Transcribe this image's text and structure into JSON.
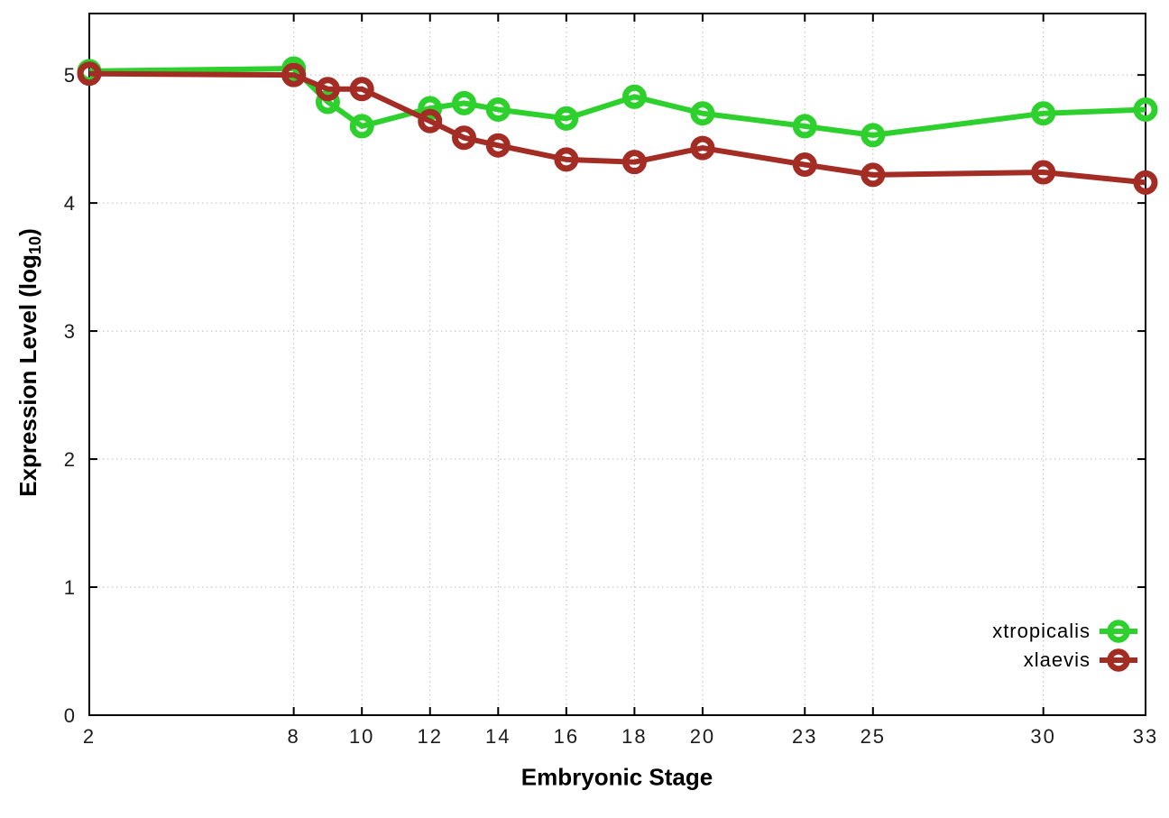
{
  "figure": {
    "xlabel": "Embryonic Stage",
    "ylabel_prefix": "Expression Level (log",
    "ylabel_sub": "10",
    "ylabel_suffix": ")"
  },
  "chart_data": {
    "type": "line",
    "title": "",
    "xlabel": "Embryonic Stage",
    "ylabel": "Expression Level (log10)",
    "x": [
      2,
      8,
      9,
      10,
      12,
      13,
      14,
      16,
      18,
      20,
      23,
      25,
      30,
      33
    ],
    "series": [
      {
        "name": "xtropicalis",
        "color": "#2ed02e",
        "values": [
          5.03,
          5.05,
          4.79,
          4.6,
          4.74,
          4.78,
          4.73,
          4.66,
          4.83,
          4.7,
          4.6,
          4.53,
          4.7,
          4.73
        ]
      },
      {
        "name": "xlaevis",
        "color": "#a32c24",
        "values": [
          5.01,
          5.0,
          4.89,
          4.89,
          4.64,
          4.51,
          4.45,
          4.34,
          4.32,
          4.43,
          4.3,
          4.22,
          4.24,
          4.16
        ]
      }
    ],
    "xticks": [
      2,
      8,
      10,
      12,
      14,
      16,
      18,
      20,
      23,
      25,
      30,
      33
    ],
    "yticks": [
      0,
      1,
      2,
      3,
      4,
      5
    ],
    "xlim": [
      2,
      33
    ],
    "ylim": [
      0,
      5.48
    ],
    "grid": true,
    "grid_style": "dotted",
    "grid_color": "#bdbdbd",
    "border_color": "#000000",
    "tick_label_color": "#1c1c1c",
    "background_color": "#ffffff",
    "legend_position": "inside-bottom-right"
  }
}
